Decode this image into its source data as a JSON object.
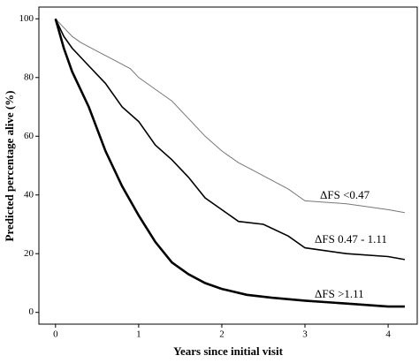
{
  "chart_data": {
    "type": "line",
    "x_label": "Years since initial visit",
    "y_label": "Predicted percentage alive (%)",
    "xlim": [
      -0.2,
      4.35
    ],
    "xticks": [
      0,
      1,
      2,
      3,
      4
    ],
    "ylim": [
      -4,
      104
    ],
    "yticks": [
      0,
      20,
      40,
      60,
      80,
      100
    ],
    "series": [
      {
        "name": "ΔFS <0.47",
        "color": "#777777",
        "x": [
          0,
          0.1,
          0.2,
          0.3,
          0.5,
          0.7,
          0.9,
          1.0,
          1.2,
          1.4,
          1.6,
          1.8,
          2.0,
          2.2,
          2.4,
          2.6,
          2.8,
          3.0,
          3.5,
          4.0,
          4.2
        ],
        "values": [
          100,
          97,
          94,
          92,
          89,
          86,
          83,
          80,
          76,
          72,
          66,
          60,
          55,
          51,
          48,
          45,
          42,
          38,
          37,
          35,
          34
        ]
      },
      {
        "name": "ΔFS 0.47 - 1.11",
        "color": "#000000",
        "x": [
          0,
          0.1,
          0.2,
          0.4,
          0.6,
          0.8,
          1.0,
          1.2,
          1.4,
          1.6,
          1.8,
          2.0,
          2.2,
          2.5,
          2.8,
          3.0,
          3.5,
          4.0,
          4.2
        ],
        "values": [
          100,
          94,
          90,
          84,
          78,
          70,
          65,
          57,
          52,
          46,
          39,
          35,
          31,
          30,
          26,
          22,
          20,
          19,
          18
        ]
      },
      {
        "name": "ΔFS >1.11",
        "color": "#000000",
        "x": [
          0,
          0.1,
          0.2,
          0.4,
          0.6,
          0.8,
          1.0,
          1.2,
          1.4,
          1.6,
          1.8,
          2.0,
          2.3,
          2.6,
          3.0,
          3.5,
          4.0,
          4.2
        ],
        "values": [
          100,
          90,
          82,
          70,
          55,
          43,
          33,
          24,
          17,
          13,
          10,
          8,
          6,
          5,
          4,
          3,
          2,
          2
        ]
      }
    ]
  }
}
